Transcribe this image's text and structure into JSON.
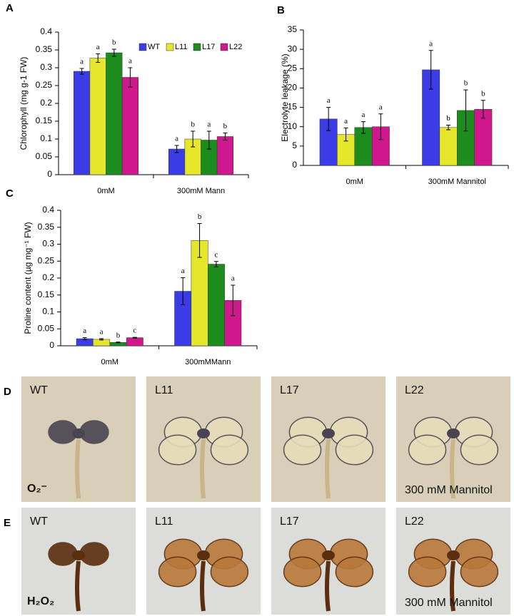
{
  "chart_data": [
    {
      "type": "bar",
      "panel": "A",
      "ylabel": "Chlorophyll  (mg g-1 FW)",
      "categories": [
        "0mM",
        "300mM Mann"
      ],
      "legend": true,
      "ylim": [
        0,
        0.4
      ],
      "yticks": [
        0,
        0.05,
        0.1,
        0.15,
        0.2,
        0.25,
        0.3,
        0.35,
        0.4
      ],
      "series": [
        {
          "name": "WT",
          "color": "#3c3ce6",
          "values": [
            0.29,
            0.072
          ],
          "errors": [
            0.008,
            0.01
          ],
          "letters": [
            "a",
            "a"
          ]
        },
        {
          "name": "L11",
          "color": "#e6e62a",
          "values": [
            0.327,
            0.1
          ],
          "errors": [
            0.012,
            0.022
          ],
          "letters": [
            "a",
            "b"
          ]
        },
        {
          "name": "L17",
          "color": "#1c8c1c",
          "values": [
            0.342,
            0.097
          ],
          "errors": [
            0.01,
            0.025
          ],
          "letters": [
            "b",
            "a"
          ]
        },
        {
          "name": "L22",
          "color": "#d0188e",
          "values": [
            0.273,
            0.107
          ],
          "errors": [
            0.027,
            0.01
          ],
          "letters": [
            "a",
            "b"
          ]
        }
      ]
    },
    {
      "type": "bar",
      "panel": "B",
      "ylabel": "Electrolyte leakage  (%)",
      "categories": [
        "0mM",
        "300mM Mannitol"
      ],
      "legend": false,
      "ylim": [
        0,
        35
      ],
      "yticks": [
        0,
        5,
        10,
        15,
        20,
        25,
        30,
        35
      ],
      "series": [
        {
          "color": "#3c3ce6",
          "values": [
            12,
            24.7
          ],
          "errors": [
            3,
            5
          ],
          "letters": [
            "a",
            "a"
          ]
        },
        {
          "color": "#e6e62a",
          "values": [
            8,
            9.8
          ],
          "errors": [
            1.7,
            0.6
          ],
          "letters": [
            "a",
            "b"
          ]
        },
        {
          "color": "#1c8c1c",
          "values": [
            9.8,
            14.2
          ],
          "errors": [
            1.5,
            5.3
          ],
          "letters": [
            "a",
            "b"
          ]
        },
        {
          "color": "#d0188e",
          "values": [
            10,
            14.5
          ],
          "errors": [
            3.3,
            2.3
          ],
          "letters": [
            "a",
            "b"
          ]
        }
      ]
    },
    {
      "type": "bar",
      "panel": "C",
      "ylabel": "Proline content (µg mg⁻¹ FW)",
      "categories": [
        "0mM",
        "300mMMann"
      ],
      "legend": false,
      "ylim": [
        0,
        0.4
      ],
      "yticks": [
        0,
        0.05,
        0.1,
        0.15,
        0.2,
        0.25,
        0.3,
        0.35,
        0.4
      ],
      "series": [
        {
          "color": "#3c3ce6",
          "values": [
            0.021,
            0.161
          ],
          "errors": [
            0.003,
            0.04
          ],
          "letters": [
            "a",
            "a"
          ]
        },
        {
          "color": "#e6e62a",
          "values": [
            0.019,
            0.311
          ],
          "errors": [
            0.002,
            0.05
          ],
          "letters": [
            "a",
            "b"
          ]
        },
        {
          "color": "#1c8c1c",
          "values": [
            0.01,
            0.241
          ],
          "errors": [
            0.001,
            0.008
          ],
          "letters": [
            "b",
            "c"
          ]
        },
        {
          "color": "#d0188e",
          "values": [
            0.024,
            0.134
          ],
          "errors": [
            0.001,
            0.045
          ],
          "letters": [
            "c",
            "a"
          ]
        }
      ]
    }
  ],
  "photos": [
    {
      "panel": "D",
      "stain": "O₂⁻",
      "labels": [
        "WT",
        "L11",
        "L17",
        "L22"
      ],
      "note": "300 mM Mannitol"
    },
    {
      "panel": "E",
      "stain": "H₂O₂",
      "labels": [
        "WT",
        "L11",
        "L17",
        "L22"
      ],
      "note": "300 mM Mannitol"
    }
  ]
}
